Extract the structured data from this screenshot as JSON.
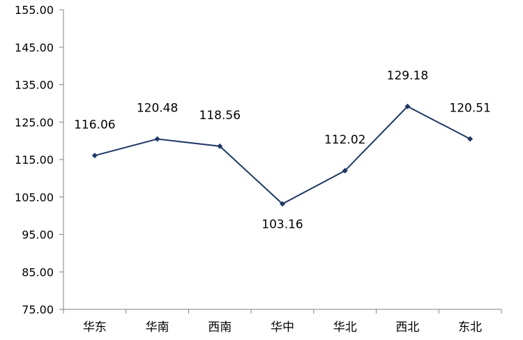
{
  "chart_data": {
    "type": "line",
    "categories": [
      "华东",
      "华南",
      "西南",
      "华中",
      "华北",
      "西北",
      "东北"
    ],
    "values": [
      116.06,
      120.48,
      118.56,
      103.16,
      112.02,
      129.18,
      120.51
    ],
    "data_labels": [
      "116.06",
      "120.48",
      "118.56",
      "103.16",
      "112.02",
      "129.18",
      "120.51"
    ],
    "y_ticks": [
      "75.00",
      "85.00",
      "95.00",
      "105.00",
      "115.00",
      "125.00",
      "135.00",
      "145.00",
      "155.00"
    ],
    "ylim": [
      75,
      155
    ],
    "grid": false,
    "legend": "none",
    "line_color": "#1f3864",
    "marker": "diamond"
  }
}
